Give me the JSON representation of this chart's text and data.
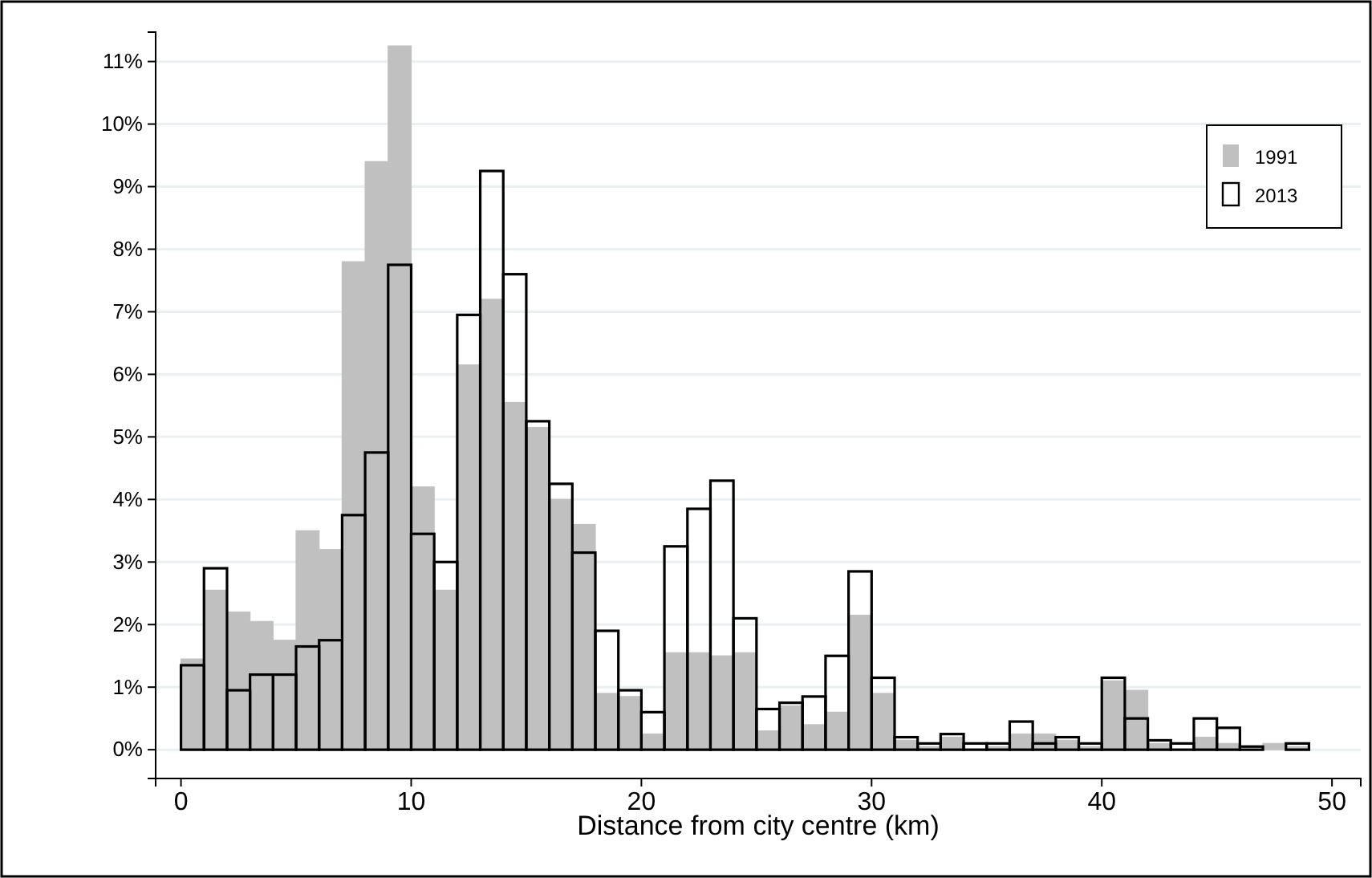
{
  "chart_data": {
    "type": "histogram",
    "xlabel": "Distance from city centre (km)",
    "bins": [
      0,
      1,
      2,
      3,
      4,
      5,
      6,
      7,
      8,
      9,
      10,
      11,
      12,
      13,
      14,
      15,
      16,
      17,
      18,
      19,
      20,
      21,
      22,
      23,
      24,
      25,
      26,
      27,
      28,
      29,
      30,
      31,
      32,
      33,
      34,
      35,
      36,
      37,
      38,
      39,
      40,
      41,
      42,
      43,
      44,
      45,
      46,
      47,
      48,
      49
    ],
    "series": [
      {
        "name": "1991",
        "color": "#c0c0c0",
        "values": [
          1.45,
          2.55,
          2.2,
          2.05,
          1.75,
          3.5,
          3.2,
          7.8,
          9.4,
          11.25,
          4.2,
          2.55,
          6.15,
          7.2,
          5.55,
          5.15,
          4.0,
          3.6,
          0.9,
          0.85,
          0.25,
          1.55,
          1.55,
          1.5,
          1.55,
          0.3,
          0.7,
          0.4,
          0.6,
          2.15,
          0.9,
          0.15,
          0.05,
          0.2,
          null,
          0.05,
          0.25,
          0.25,
          0.15,
          0.05,
          1.1,
          0.95,
          0.1,
          null,
          0.2,
          0.1,
          null,
          0.1,
          0.05
        ]
      },
      {
        "name": "2013",
        "color": "#000000",
        "values": [
          1.35,
          2.9,
          0.95,
          1.2,
          1.2,
          1.65,
          1.75,
          3.75,
          4.75,
          7.75,
          3.45,
          3.0,
          6.95,
          9.25,
          7.6,
          5.25,
          4.25,
          3.15,
          1.9,
          0.95,
          0.6,
          3.25,
          3.85,
          4.3,
          2.1,
          0.65,
          0.75,
          0.85,
          1.5,
          2.85,
          1.15,
          0.2,
          0.1,
          0.25,
          0.1,
          0.1,
          0.45,
          0.1,
          0.2,
          0.1,
          1.15,
          0.5,
          0.15,
          0.1,
          0.5,
          0.35,
          0.05,
          0,
          0.1
        ]
      }
    ],
    "xlim": [
      -1.1,
      51.25
    ],
    "xticks": [
      0,
      10,
      20,
      30,
      40,
      50
    ],
    "ylim": [
      -0.46,
      11.47
    ],
    "yticks": [
      {
        "value": 0,
        "label": "0%"
      },
      {
        "value": 1,
        "label": "1%"
      },
      {
        "value": 2,
        "label": "2%"
      },
      {
        "value": 3,
        "label": "3%"
      },
      {
        "value": 4,
        "label": "4%"
      },
      {
        "value": 5,
        "label": "5%"
      },
      {
        "value": 6,
        "label": "6%"
      },
      {
        "value": 7,
        "label": "7%"
      },
      {
        "value": 8,
        "label": "8%"
      },
      {
        "value": 9,
        "label": "9%"
      },
      {
        "value": 10,
        "label": "10%"
      },
      {
        "value": 11,
        "label": "11%"
      }
    ],
    "grid": "y",
    "legend": "top right"
  }
}
